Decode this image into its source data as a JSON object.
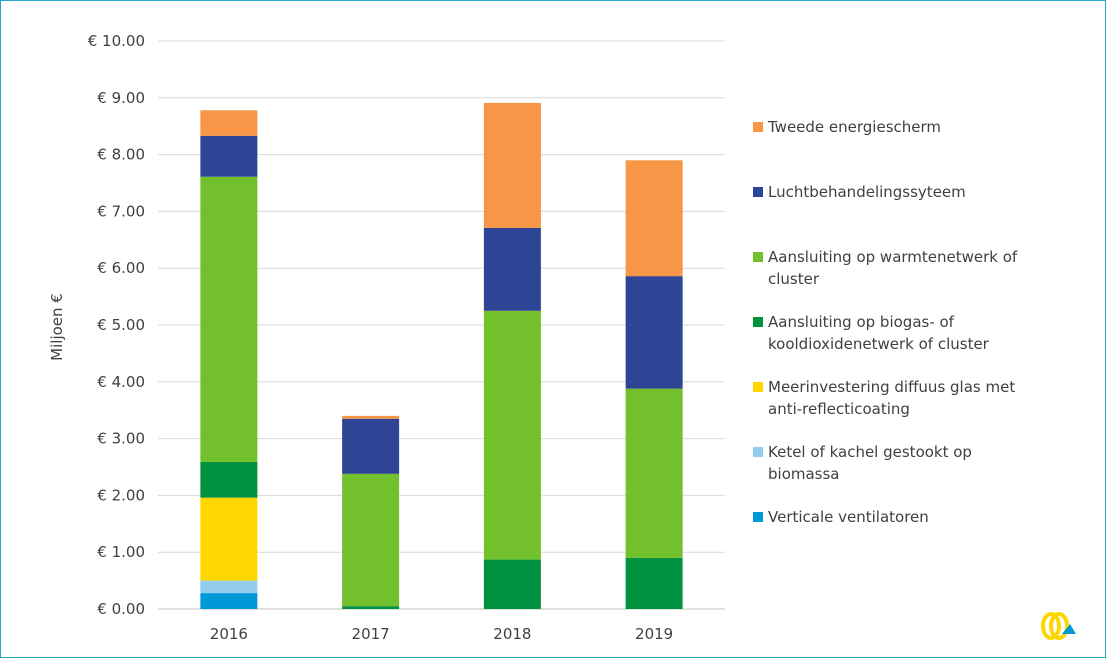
{
  "chart_data": {
    "type": "bar",
    "stacked": true,
    "ylabel": "Miljoen €",
    "ylim": [
      0,
      10
    ],
    "yticks": [
      "€ 0.00",
      "€ 1.00",
      "€ 2.00",
      "€ 3.00",
      "€ 4.00",
      "€ 5.00",
      "€ 6.00",
      "€ 7.00",
      "€ 8.00",
      "€ 9.00",
      "€ 10.00"
    ],
    "categories": [
      "2016",
      "2017",
      "2018",
      "2019"
    ],
    "grid": true,
    "legend_position": "right",
    "series": [
      {
        "name": "Verticale ventilatoren",
        "color": "#0099d8",
        "values": [
          0.28,
          0,
          0,
          0
        ]
      },
      {
        "name": "Ketel of kachel gestookt op biomassa",
        "color": "#92cdf0",
        "values": [
          0.22,
          0,
          0,
          0
        ]
      },
      {
        "name": "Meerinvestering diffuus glas met anti-reflecticoating",
        "color": "#ffd700",
        "values": [
          1.46,
          0,
          0,
          0
        ]
      },
      {
        "name": "Aansluiting op biogas- of kooldioxidenetwerk of cluster",
        "color": "#00923f",
        "values": [
          0.63,
          0.05,
          0.87,
          0.9
        ]
      },
      {
        "name": "Aansluiting op warmtenetwerk of cluster",
        "color": "#72c02c",
        "values": [
          5.02,
          2.33,
          4.38,
          2.98
        ]
      },
      {
        "name": "Luchtbehandelingssyteem",
        "color": "#2e4595",
        "values": [
          0.72,
          0.97,
          1.46,
          1.98
        ]
      },
      {
        "name": "Tweede energiescherm",
        "color": "#f79646",
        "values": [
          0.45,
          0.05,
          2.2,
          2.04
        ]
      }
    ],
    "legend_lines": [
      [
        "Tweede energiescherm"
      ],
      [
        "Luchtbehandelingssyteem"
      ],
      [
        "Aansluiting op warmtenetwerk of",
        "cluster"
      ],
      [
        "Aansluiting op biogas- of",
        "kooldioxidenetwerk of cluster"
      ],
      [
        "Meerinvestering diffuus glas met",
        "anti-reflecticoating"
      ],
      [
        "Ketel of kachel gestookt op",
        "biomassa"
      ],
      [
        "Verticale ventilatoren"
      ]
    ]
  },
  "logo": {
    "name": "logo-icon",
    "colors": [
      "#ffd700",
      "#0099d8"
    ]
  }
}
